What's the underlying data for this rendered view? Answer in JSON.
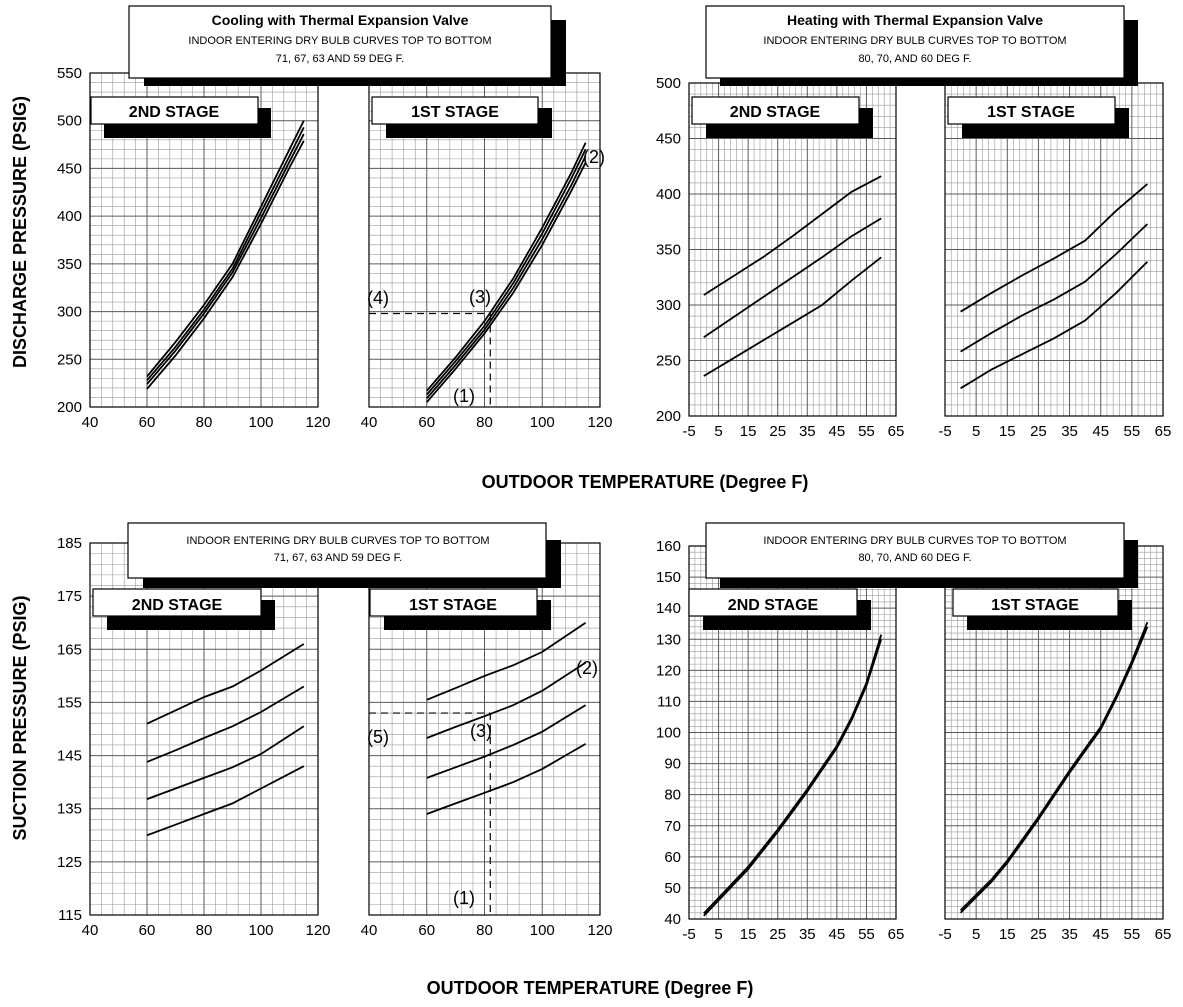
{
  "axis_titles": {
    "discharge_y": "DISCHARGE PRESSURE (PSIG)",
    "suction_y": "SUCTION PRESSURE (PSIG)",
    "x_top": "OUTDOOR TEMPERATURE (Degree F)",
    "x_bottom": "OUTDOOR TEMPERATURE (Degree F)"
  },
  "boxes": {
    "cool_top_title": "Cooling with Thermal Expansion Valve",
    "cool_top_sub1": "INDOOR ENTERING DRY BULB CURVES TOP TO BOTTOM",
    "cool_top_sub2": "71, 67, 63 AND 59 DEG F.",
    "heat_top_title": "Heating with Thermal Expansion Valve",
    "heat_top_sub1": "INDOOR ENTERING DRY BULB CURVES TOP TO BOTTOM",
    "heat_top_sub2": "80, 70, AND 60 DEG F.",
    "cool_bot_sub1": "INDOOR ENTERING DRY BULB CURVES TOP TO BOTTOM",
    "cool_bot_sub2": "71, 67, 63 AND 59 DEG F.",
    "heat_bot_sub1": "INDOOR ENTERING DRY BULB CURVES TOP TO BOTTOM",
    "heat_bot_sub2": "80, 70, AND 60 DEG F."
  },
  "stage_labels": {
    "second": "2ND STAGE",
    "first": "1ST STAGE"
  },
  "annotations": [
    "(1)",
    "(2)",
    "(3)",
    "(4)",
    "(5)"
  ],
  "chart_data": [
    {
      "id": "cool-discharge-2nd",
      "type": "line",
      "xlim": [
        40,
        120
      ],
      "ylim": [
        200,
        550
      ],
      "xticks": [
        40,
        60,
        80,
        100,
        120
      ],
      "yticks": [
        200,
        250,
        300,
        350,
        400,
        450,
        500,
        550
      ],
      "series": [
        {
          "x": [
            60,
            70,
            80,
            90,
            100,
            110,
            115
          ],
          "values": [
            232,
            268,
            307,
            350,
            410,
            470,
            500
          ]
        },
        {
          "x": [
            60,
            70,
            80,
            90,
            100,
            110,
            115
          ],
          "values": [
            228,
            263,
            302,
            345,
            404,
            463,
            493
          ]
        },
        {
          "x": [
            60,
            70,
            80,
            90,
            100,
            110,
            115
          ],
          "values": [
            224,
            259,
            298,
            341,
            398,
            457,
            486
          ]
        },
        {
          "x": [
            60,
            70,
            80,
            90,
            100,
            110,
            115
          ],
          "values": [
            219,
            254,
            293,
            336,
            392,
            451,
            479
          ]
        }
      ]
    },
    {
      "id": "cool-discharge-1st",
      "type": "line",
      "xlim": [
        40,
        120
      ],
      "ylim": [
        200,
        550
      ],
      "xticks": [
        40,
        60,
        80,
        100,
        120
      ],
      "yticks": [
        200,
        250,
        300,
        350,
        400,
        450,
        500,
        550
      ],
      "series": [
        {
          "x": [
            60,
            70,
            80,
            90,
            100,
            110,
            115
          ],
          "values": [
            217,
            252,
            290,
            335,
            388,
            445,
            477
          ]
        },
        {
          "x": [
            60,
            70,
            80,
            90,
            100,
            110,
            115
          ],
          "values": [
            213,
            248,
            285,
            330,
            382,
            439,
            470
          ]
        },
        {
          "x": [
            60,
            70,
            80,
            90,
            100,
            110,
            115
          ],
          "values": [
            209,
            244,
            281,
            325,
            376,
            432,
            463
          ]
        },
        {
          "x": [
            60,
            70,
            80,
            90,
            100,
            110,
            115
          ],
          "values": [
            205,
            240,
            277,
            320,
            370,
            426,
            456
          ]
        }
      ],
      "guides": [
        {
          "x": 82,
          "y": 298
        }
      ]
    },
    {
      "id": "heat-discharge-2nd",
      "type": "line",
      "xlim": [
        -5,
        65
      ],
      "ylim": [
        200,
        500
      ],
      "xticks": [
        -5,
        5,
        15,
        25,
        35,
        45,
        55,
        65
      ],
      "yticks": [
        200,
        250,
        300,
        350,
        400,
        450,
        500
      ],
      "series": [
        {
          "x": [
            0,
            10,
            20,
            30,
            40,
            50,
            60
          ],
          "values": [
            309,
            326,
            343,
            362,
            382,
            402,
            416
          ]
        },
        {
          "x": [
            0,
            10,
            20,
            30,
            40,
            50,
            60
          ],
          "values": [
            271,
            289,
            307,
            325,
            343,
            362,
            378
          ]
        },
        {
          "x": [
            0,
            10,
            20,
            30,
            40,
            50,
            60
          ],
          "values": [
            236,
            252,
            268,
            284,
            300,
            322,
            343
          ]
        }
      ]
    },
    {
      "id": "heat-discharge-1st",
      "type": "line",
      "xlim": [
        -5,
        65
      ],
      "ylim": [
        200,
        500
      ],
      "xticks": [
        -5,
        5,
        15,
        25,
        35,
        45,
        55,
        65
      ],
      "yticks": [
        200,
        250,
        300,
        350,
        400,
        450,
        500
      ],
      "series": [
        {
          "x": [
            0,
            10,
            20,
            30,
            40,
            50,
            60
          ],
          "values": [
            294,
            311,
            327,
            342,
            358,
            385,
            409
          ]
        },
        {
          "x": [
            0,
            10,
            20,
            30,
            40,
            50,
            60
          ],
          "values": [
            258,
            275,
            291,
            305,
            321,
            346,
            373
          ]
        },
        {
          "x": [
            0,
            10,
            20,
            30,
            40,
            50,
            60
          ],
          "values": [
            225,
            242,
            256,
            270,
            286,
            311,
            339
          ]
        }
      ]
    },
    {
      "id": "cool-suction-2nd",
      "type": "line",
      "xlim": [
        40,
        120
      ],
      "ylim": [
        115,
        185
      ],
      "xticks": [
        40,
        60,
        80,
        100,
        120
      ],
      "yticks": [
        115,
        125,
        135,
        145,
        155,
        165,
        175,
        185
      ],
      "series": [
        {
          "x": [
            60,
            70,
            80,
            90,
            100,
            115
          ],
          "values": [
            151,
            153.5,
            156,
            158,
            161,
            166
          ]
        },
        {
          "x": [
            60,
            70,
            80,
            90,
            100,
            115
          ],
          "values": [
            143.8,
            146,
            148.3,
            150.5,
            153.2,
            158
          ]
        },
        {
          "x": [
            60,
            70,
            80,
            90,
            100,
            115
          ],
          "values": [
            136.8,
            138.8,
            140.8,
            142.8,
            145.3,
            150.5
          ]
        },
        {
          "x": [
            60,
            70,
            80,
            90,
            100,
            115
          ],
          "values": [
            130,
            132,
            134,
            136,
            138.8,
            143
          ]
        }
      ]
    },
    {
      "id": "cool-suction-1st",
      "type": "line",
      "xlim": [
        40,
        120
      ],
      "ylim": [
        115,
        185
      ],
      "xticks": [
        40,
        60,
        80,
        100,
        120
      ],
      "yticks": [
        115,
        125,
        135,
        145,
        155,
        165,
        175,
        185
      ],
      "series": [
        {
          "x": [
            60,
            70,
            80,
            90,
            100,
            115
          ],
          "values": [
            155.5,
            157.7,
            160,
            162,
            164.5,
            170
          ]
        },
        {
          "x": [
            60,
            70,
            80,
            90,
            100,
            115
          ],
          "values": [
            148.3,
            150.4,
            152.4,
            154.5,
            157.2,
            162.5
          ]
        },
        {
          "x": [
            60,
            70,
            80,
            90,
            100,
            115
          ],
          "values": [
            140.8,
            142.8,
            144.8,
            147,
            149.5,
            154.5
          ]
        },
        {
          "x": [
            60,
            70,
            80,
            90,
            100,
            115
          ],
          "values": [
            134,
            136,
            138,
            140,
            142.5,
            147.2
          ]
        }
      ],
      "guides": [
        {
          "x": 82,
          "y": 153
        }
      ]
    },
    {
      "id": "heat-suction-2nd",
      "type": "line",
      "xlim": [
        -5,
        65
      ],
      "ylim": [
        40,
        160
      ],
      "xticks": [
        -5,
        5,
        15,
        25,
        35,
        45,
        55,
        65
      ],
      "yticks": [
        40,
        50,
        60,
        70,
        80,
        90,
        100,
        110,
        120,
        130,
        140,
        150,
        160
      ],
      "series": [
        {
          "x": [
            0,
            5,
            10,
            15,
            20,
            25,
            30,
            35,
            40,
            45,
            50,
            55,
            60
          ],
          "values": [
            41,
            46,
            51,
            56,
            62,
            68,
            74.5,
            81,
            88,
            95,
            104,
            115,
            130
          ]
        },
        {
          "x": [
            0,
            5,
            10,
            15,
            20,
            25,
            30,
            35,
            40,
            45,
            50,
            55,
            60
          ],
          "values": [
            41.8,
            46.8,
            51.8,
            56.8,
            62.8,
            68.8,
            75.3,
            81.8,
            88.8,
            95.8,
            104.8,
            116,
            131.5
          ]
        }
      ]
    },
    {
      "id": "heat-suction-1st",
      "type": "line",
      "xlim": [
        -5,
        65
      ],
      "ylim": [
        40,
        160
      ],
      "xticks": [
        -5,
        5,
        15,
        25,
        35,
        45,
        55,
        65
      ],
      "yticks": [
        40,
        50,
        60,
        70,
        80,
        90,
        100,
        110,
        120,
        130,
        140,
        150,
        160
      ],
      "series": [
        {
          "x": [
            0,
            5,
            10,
            15,
            20,
            25,
            30,
            35,
            40,
            45,
            50,
            55,
            60
          ],
          "values": [
            42,
            47,
            52,
            58,
            65,
            72,
            79.5,
            87,
            94,
            101,
            111,
            122,
            134
          ]
        },
        {
          "x": [
            0,
            5,
            10,
            15,
            20,
            25,
            30,
            35,
            40,
            45,
            50,
            55,
            60
          ],
          "values": [
            42.8,
            47.8,
            52.8,
            58.8,
            65.8,
            72.8,
            80.3,
            87.8,
            94.8,
            101.8,
            111.8,
            123,
            135.5
          ]
        }
      ]
    }
  ]
}
